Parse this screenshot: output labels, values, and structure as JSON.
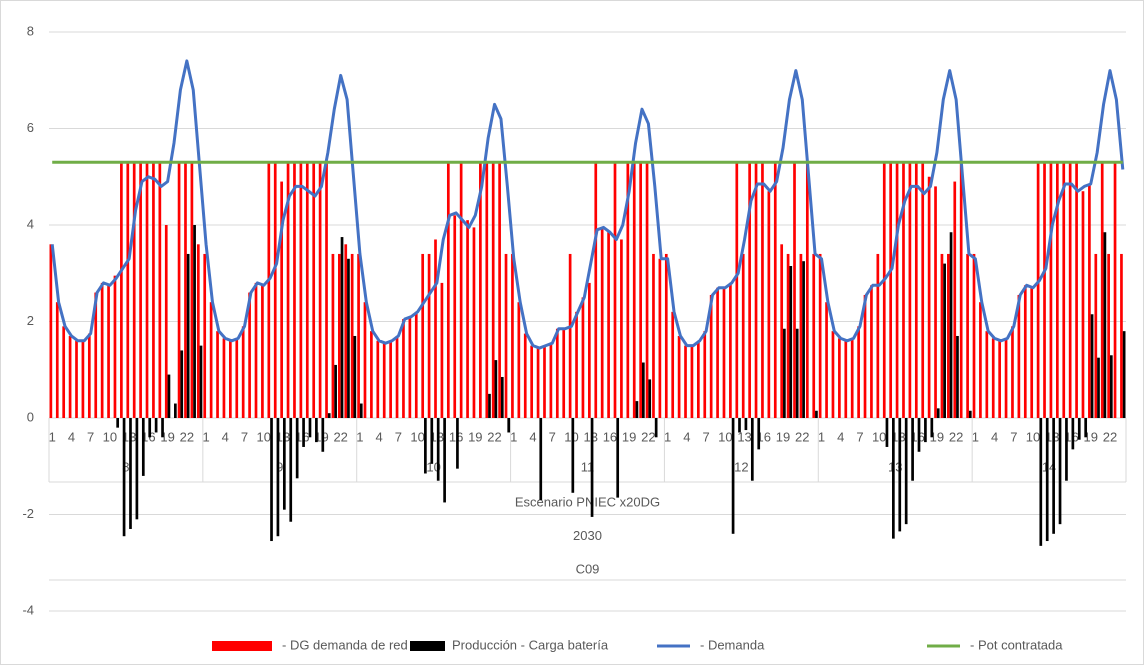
{
  "chart_data": {
    "type": "combo",
    "ylim": [
      -4,
      8
    ],
    "yticks": [
      -4,
      -2,
      0,
      2,
      4,
      6,
      8
    ],
    "grid": true,
    "legend": "bottom",
    "categories": [
      1,
      null,
      null,
      4,
      null,
      null,
      7,
      null,
      null,
      10,
      null,
      null,
      13,
      null,
      null,
      16,
      null,
      null,
      19,
      null,
      null,
      22,
      null,
      null,
      1,
      null,
      null,
      4,
      null,
      null,
      7,
      null,
      null,
      10,
      null,
      null,
      13,
      null,
      null,
      16,
      null,
      null,
      19,
      null,
      null,
      22,
      null,
      null,
      1,
      null,
      null,
      4,
      null,
      null,
      7,
      null,
      null,
      10,
      null,
      null,
      13,
      null,
      null,
      16,
      null,
      null,
      19,
      null,
      null,
      22,
      null,
      null,
      1,
      null,
      null,
      4,
      null,
      null,
      7,
      null,
      null,
      10,
      null,
      null,
      13,
      null,
      null,
      16,
      null,
      null,
      19,
      null,
      null,
      22,
      null,
      null,
      1,
      null,
      null,
      4,
      null,
      null,
      7,
      null,
      null,
      10,
      null,
      null,
      13,
      null,
      null,
      16,
      null,
      null,
      19,
      null,
      null,
      22,
      null,
      null,
      1,
      null,
      null,
      4,
      null,
      null,
      7,
      null,
      null,
      10,
      null,
      null,
      13,
      null,
      null,
      16,
      null,
      null,
      19,
      null,
      null,
      22,
      null,
      null,
      1,
      null,
      null,
      4,
      null,
      null,
      7,
      null,
      null,
      10,
      null,
      null,
      13,
      null,
      null,
      16,
      null,
      null,
      19,
      null,
      null,
      22,
      null,
      null
    ],
    "day_labels": [
      8,
      9,
      10,
      11,
      12,
      13,
      14
    ],
    "category_levels": [
      "Escenario PNIEC x20DG",
      "2030",
      "C09"
    ],
    "series": [
      {
        "name": "- DG demanda de red",
        "type": "bar",
        "color": "#ff0000",
        "values": [
          3.6,
          2.4,
          1.9,
          1.7,
          1.6,
          1.6,
          1.75,
          2.6,
          2.8,
          2.75,
          2.95,
          5.3,
          5.3,
          5.3,
          5.3,
          5.3,
          5.3,
          5.3,
          4.0,
          0,
          5.3,
          5.3,
          5.3,
          3.6,
          3.4,
          2.4,
          1.8,
          1.65,
          1.6,
          1.65,
          1.9,
          2.6,
          2.8,
          2.75,
          5.3,
          5.3,
          4.9,
          5.3,
          5.3,
          5.3,
          5.3,
          5.3,
          5.3,
          5.3,
          3.4,
          3.4,
          3.6,
          3.4,
          3.4,
          2.4,
          1.8,
          1.6,
          1.55,
          1.6,
          1.7,
          2.05,
          2.1,
          2.2,
          3.4,
          3.4,
          3.7,
          2.8,
          5.3,
          4.2,
          5.3,
          4.1,
          3.95,
          5.3,
          5.3,
          5.3,
          5.3,
          3.4,
          3.4,
          2.4,
          1.75,
          1.5,
          1.45,
          1.5,
          1.55,
          1.85,
          1.85,
          3.4,
          2.2,
          2.5,
          2.8,
          5.3,
          3.95,
          3.85,
          5.3,
          3.7,
          5.3,
          5.3,
          5.3,
          5.3,
          3.4,
          3.3,
          3.4,
          2.2,
          1.7,
          1.5,
          1.5,
          1.6,
          1.8,
          2.55,
          2.7,
          2.7,
          2.8,
          5.3,
          3.4,
          5.3,
          5.3,
          5.3,
          4.7,
          5.3,
          3.6,
          3.4,
          5.3,
          3.4,
          5.3,
          3.4,
          3.4,
          2.4,
          1.8,
          1.65,
          1.6,
          1.65,
          1.9,
          2.55,
          2.75,
          3.4,
          5.3,
          5.3,
          5.3,
          5.3,
          5.3,
          5.3,
          5.3,
          5.0,
          4.8,
          3.4,
          3.4,
          4.9,
          5.3,
          3.4,
          3.4,
          2.4,
          1.8,
          1.65,
          1.6,
          1.65,
          1.9,
          2.55,
          2.75,
          2.7,
          5.3,
          5.3,
          5.3,
          5.3,
          5.3,
          5.3,
          5.3,
          4.7,
          4.85,
          3.4,
          5.3,
          3.4,
          5.3,
          3.4
        ]
      },
      {
        "name": "Producción - Carga batería",
        "type": "bar",
        "color": "#000000",
        "values": [
          0,
          0,
          0,
          0,
          0,
          0,
          0,
          0,
          0,
          0,
          -0.2,
          -2.45,
          -2.3,
          -2.1,
          -1.2,
          -0.4,
          -0.3,
          -0.4,
          0.9,
          0.3,
          1.4,
          3.4,
          4.0,
          1.5,
          0,
          0,
          0,
          0,
          0,
          0,
          0,
          0,
          0,
          0,
          -2.55,
          -2.45,
          -1.9,
          -2.15,
          -1.25,
          -0.6,
          -0.4,
          -0.5,
          -0.7,
          0.1,
          1.1,
          3.75,
          3.3,
          1.7,
          0.3,
          0,
          0,
          0,
          0,
          0,
          0,
          0,
          0,
          0,
          -1.15,
          -0.95,
          -1.3,
          -1.75,
          0,
          -1.05,
          0,
          0,
          0,
          0,
          0.5,
          1.2,
          0.85,
          -0.3,
          0,
          0,
          0,
          0,
          -1.7,
          0,
          0,
          0,
          0,
          -1.55,
          0,
          0,
          -2.05,
          0,
          0,
          0,
          -1.65,
          0,
          0,
          0.35,
          1.15,
          0.8,
          -0.4,
          0,
          0,
          0,
          0,
          0,
          0,
          0,
          0,
          0,
          0,
          0,
          -2.4,
          -0.3,
          -0.25,
          -1.3,
          -0.65,
          0,
          0,
          0,
          1.85,
          3.15,
          1.85,
          3.25,
          0,
          0.15,
          0,
          0,
          0,
          0,
          0,
          0,
          0,
          0,
          0,
          0,
          -0.6,
          -2.5,
          -2.35,
          -2.2,
          -1.3,
          -0.7,
          -0.5,
          -0.4,
          0.2,
          3.2,
          3.85,
          1.7,
          0,
          0.15,
          0,
          0,
          0,
          0,
          0,
          0,
          0,
          0,
          0,
          0,
          -2.65,
          -2.55,
          -2.4,
          -2.2,
          -1.3,
          -0.65,
          -0.45,
          -0.4,
          2.15,
          1.25,
          3.85,
          1.3,
          0,
          1.8
        ]
      },
      {
        "name": "- Demanda",
        "type": "line",
        "color": "#4472c4",
        "values": [
          3.6,
          2.4,
          1.9,
          1.7,
          1.6,
          1.6,
          1.75,
          2.6,
          2.8,
          2.75,
          2.9,
          3.1,
          3.3,
          4.3,
          4.9,
          5.0,
          4.95,
          4.8,
          4.9,
          5.7,
          6.8,
          7.4,
          6.8,
          5.2,
          3.6,
          2.4,
          1.8,
          1.65,
          1.6,
          1.65,
          1.9,
          2.6,
          2.8,
          2.75,
          2.9,
          3.2,
          4.1,
          4.6,
          4.8,
          4.8,
          4.7,
          4.6,
          4.8,
          5.5,
          6.4,
          7.1,
          6.6,
          5.0,
          3.4,
          2.4,
          1.8,
          1.6,
          1.55,
          1.6,
          1.7,
          2.05,
          2.1,
          2.2,
          2.4,
          2.6,
          2.8,
          3.7,
          4.2,
          4.25,
          4.1,
          3.95,
          4.2,
          4.8,
          5.8,
          6.5,
          6.2,
          4.8,
          3.3,
          2.4,
          1.75,
          1.5,
          1.45,
          1.5,
          1.55,
          1.85,
          1.85,
          1.9,
          2.2,
          2.5,
          3.2,
          3.9,
          3.95,
          3.85,
          3.7,
          4.0,
          4.7,
          5.7,
          6.4,
          6.1,
          4.8,
          3.3,
          3.3,
          2.2,
          1.7,
          1.5,
          1.5,
          1.6,
          1.8,
          2.55,
          2.7,
          2.7,
          2.8,
          3.0,
          3.7,
          4.5,
          4.85,
          4.85,
          4.7,
          4.9,
          5.6,
          6.6,
          7.2,
          6.6,
          5.0,
          3.4,
          3.3,
          2.4,
          1.8,
          1.65,
          1.6,
          1.65,
          1.9,
          2.55,
          2.75,
          2.75,
          2.9,
          3.1,
          4.0,
          4.5,
          4.8,
          4.8,
          4.65,
          4.8,
          5.5,
          6.6,
          7.2,
          6.6,
          5.0,
          3.4,
          3.3,
          2.4,
          1.8,
          1.65,
          1.6,
          1.65,
          1.9,
          2.55,
          2.75,
          2.7,
          2.85,
          3.1,
          4.0,
          4.5,
          4.85,
          4.85,
          4.7,
          4.8,
          4.85,
          5.5,
          6.5,
          7.2,
          6.6,
          5.15
        ]
      },
      {
        "name": "- Pot contratada",
        "type": "line",
        "color": "#70ad47",
        "values": [
          5.3,
          5.3,
          5.3,
          5.3,
          5.3,
          5.3,
          5.3,
          5.3,
          5.3,
          5.3,
          5.3,
          5.3,
          5.3,
          5.3,
          5.3,
          5.3,
          5.3,
          5.3,
          5.3,
          5.3,
          5.3,
          5.3,
          5.3,
          5.3,
          5.3,
          5.3,
          5.3,
          5.3,
          5.3,
          5.3,
          5.3,
          5.3,
          5.3,
          5.3,
          5.3,
          5.3,
          5.3,
          5.3,
          5.3,
          5.3,
          5.3,
          5.3,
          5.3,
          5.3,
          5.3,
          5.3,
          5.3,
          5.3,
          5.3,
          5.3,
          5.3,
          5.3,
          5.3,
          5.3,
          5.3,
          5.3,
          5.3,
          5.3,
          5.3,
          5.3,
          5.3,
          5.3,
          5.3,
          5.3,
          5.3,
          5.3,
          5.3,
          5.3,
          5.3,
          5.3,
          5.3,
          5.3,
          5.3,
          5.3,
          5.3,
          5.3,
          5.3,
          5.3,
          5.3,
          5.3,
          5.3,
          5.3,
          5.3,
          5.3,
          5.3,
          5.3,
          5.3,
          5.3,
          5.3,
          5.3,
          5.3,
          5.3,
          5.3,
          5.3,
          5.3,
          5.3,
          5.3,
          5.3,
          5.3,
          5.3,
          5.3,
          5.3,
          5.3,
          5.3,
          5.3,
          5.3,
          5.3,
          5.3,
          5.3,
          5.3,
          5.3,
          5.3,
          5.3,
          5.3,
          5.3,
          5.3,
          5.3,
          5.3,
          5.3,
          5.3,
          5.3,
          5.3,
          5.3,
          5.3,
          5.3,
          5.3,
          5.3,
          5.3,
          5.3,
          5.3,
          5.3,
          5.3,
          5.3,
          5.3,
          5.3,
          5.3,
          5.3,
          5.3,
          5.3,
          5.3,
          5.3,
          5.3,
          5.3,
          5.3,
          5.3,
          5.3,
          5.3,
          5.3,
          5.3,
          5.3,
          5.3,
          5.3,
          5.3,
          5.3,
          5.3,
          5.3,
          5.3,
          5.3,
          5.3,
          5.3,
          5.3,
          5.3,
          5.3,
          5.3,
          5.3,
          5.3,
          5.3,
          5.3
        ]
      }
    ]
  }
}
